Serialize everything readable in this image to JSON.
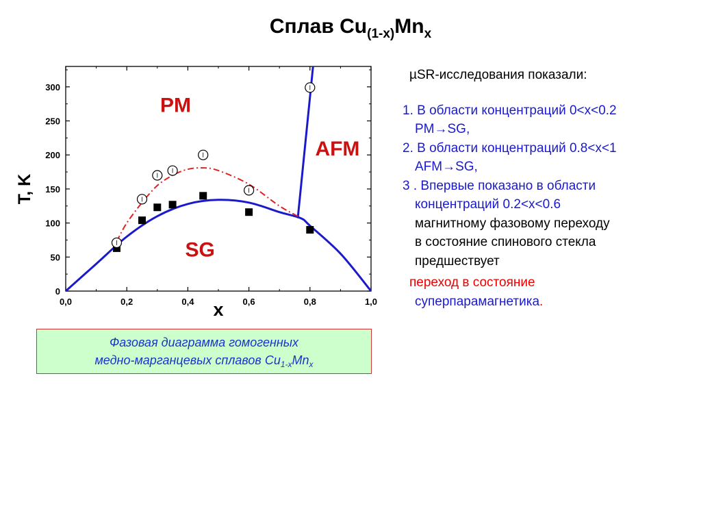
{
  "slide": {
    "title_main": "Сплав Cu",
    "title_sub": "(1-x)",
    "title_tail": "Mn",
    "title_tail_sub": "x"
  },
  "chart_data": {
    "type": "scatter",
    "xlabel": "x",
    "ylabel": "T,  K",
    "xlim": [
      0.0,
      1.0
    ],
    "ylim": [
      0,
      330
    ],
    "x_ticks": [
      "0,0",
      "0,2",
      "0,4",
      "0,6",
      "0,8",
      "1,0"
    ],
    "x_tick_values": [
      0.0,
      0.2,
      0.4,
      0.6,
      0.8,
      1.0
    ],
    "y_ticks": [
      "0",
      "50",
      "100",
      "150",
      "200",
      "250",
      "300"
    ],
    "y_tick_values": [
      0,
      50,
      100,
      150,
      200,
      250,
      300
    ],
    "region_labels": [
      {
        "text": "PM",
        "x": 0.36,
        "y": 263,
        "color": "#cc1111"
      },
      {
        "text": "AFM",
        "x": 0.89,
        "y": 199,
        "color": "#cc1111"
      },
      {
        "text": "SG",
        "x": 0.44,
        "y": 51,
        "color": "#cc1111"
      }
    ],
    "series": [
      {
        "kind": "squares",
        "color": "#000000",
        "points": [
          [
            0.167,
            63
          ],
          [
            0.25,
            104
          ],
          [
            0.3,
            123
          ],
          [
            0.35,
            127
          ],
          [
            0.45,
            140
          ],
          [
            0.6,
            116
          ],
          [
            0.8,
            90
          ]
        ]
      },
      {
        "kind": "circles",
        "color": "#000000",
        "points": [
          [
            0.167,
            71
          ],
          [
            0.25,
            135
          ],
          [
            0.3,
            170
          ],
          [
            0.35,
            177
          ],
          [
            0.45,
            200
          ],
          [
            0.6,
            148
          ],
          [
            0.8,
            299
          ]
        ]
      },
      {
        "kind": "sg-boundary",
        "color": "#1a1acc",
        "points": [
          [
            0.0,
            0
          ],
          [
            0.1,
            40
          ],
          [
            0.2,
            80
          ],
          [
            0.3,
            110
          ],
          [
            0.4,
            128
          ],
          [
            0.5,
            134
          ],
          [
            0.6,
            130
          ],
          [
            0.7,
            116
          ],
          [
            0.77,
            107
          ],
          [
            0.8,
            96
          ],
          [
            0.9,
            55
          ],
          [
            1.0,
            0
          ]
        ]
      },
      {
        "kind": "afm-boundary",
        "color": "#1a1acc",
        "points": [
          [
            0.76,
            107
          ],
          [
            0.81,
            330
          ]
        ]
      },
      {
        "kind": "pm-boundary-dashed",
        "color": "#dd2222",
        "points": [
          [
            0.167,
            73
          ],
          [
            0.2,
            100
          ],
          [
            0.25,
            130
          ],
          [
            0.3,
            155
          ],
          [
            0.35,
            170
          ],
          [
            0.4,
            179
          ],
          [
            0.45,
            181
          ],
          [
            0.5,
            177
          ],
          [
            0.6,
            157
          ],
          [
            0.7,
            125
          ],
          [
            0.76,
            110
          ]
        ]
      }
    ]
  },
  "caption": {
    "line1": "Фазовая диаграмма гомогенных",
    "line2_main": "медно-марганцевых сплавов Cu",
    "line2_sub": "1-x",
    "line2_tail": "Mn",
    "line2_tail_sub": "x"
  },
  "notes": {
    "heading": "µSR-исследования показали:",
    "item1_line1": "1. В области концентраций 0<x<0.2",
    "item1_line2": "PM→SG,",
    "item2_line1": "2. В области концентраций 0.8<x<1",
    "item2_line2": "AFM→SG,",
    "item3_line1": "3 . Впервые показано в области",
    "item3_line2": "концентраций 0.2<x<0.6",
    "item3_line3": "магнитному фазовому переходу",
    "item3_line4": "в состояние спинового стекла",
    "item3_line5": "предшествует",
    "item3_line6": "переход в состояние",
    "item3_line7": "суперпарамагнетика",
    "item3_end": "."
  }
}
